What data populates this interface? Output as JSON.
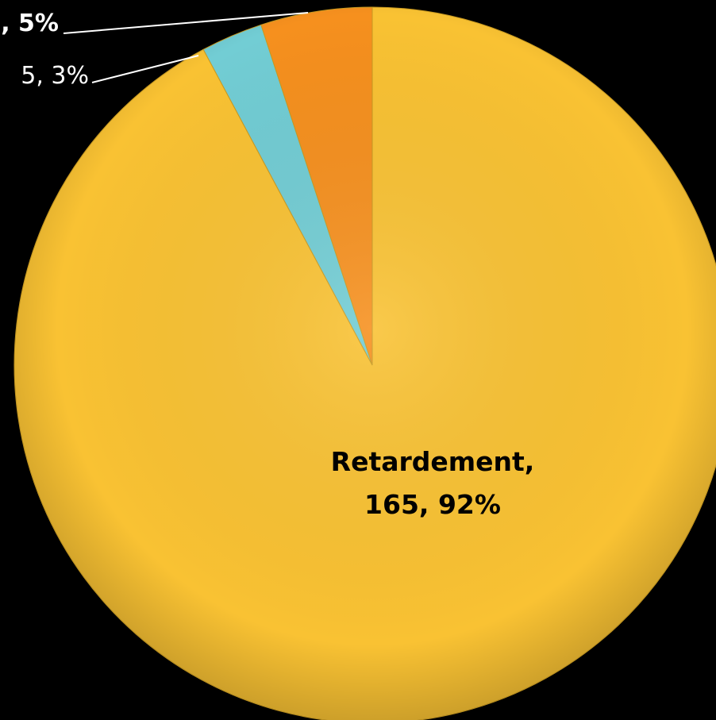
{
  "chart_data": {
    "type": "pie",
    "categories": [
      "Retardement",
      null,
      null
    ],
    "values": [
      165,
      5,
      9
    ],
    "value_labels": [
      "Retardement, 165, 92%",
      "5, 3%",
      ", 5%"
    ],
    "colors": [
      "#f9c233",
      "#72cdd4",
      "#f6901e"
    ]
  }
}
